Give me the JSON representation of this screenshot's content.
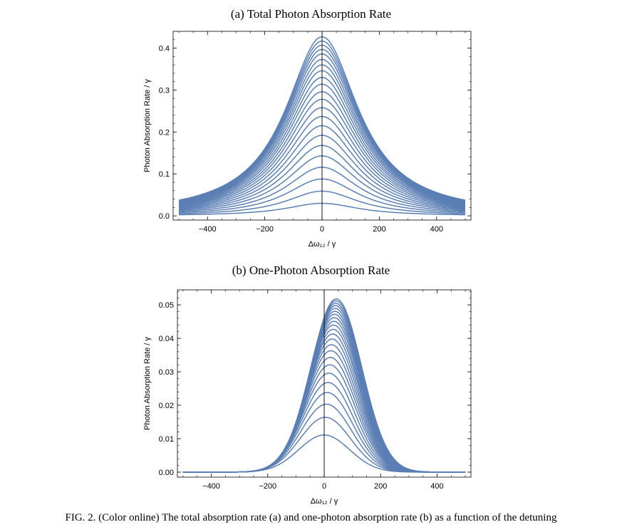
{
  "chart_data": [
    {
      "type": "line",
      "title": "(a) Total Photon Absorption Rate",
      "xlabel": "Δω₁₂ / γ",
      "ylabel": "Photon Absorption Rate / γ",
      "xlim": [
        -520,
        520
      ],
      "ylim": [
        -0.01,
        0.44
      ],
      "x_ticks": [
        -400,
        -200,
        0,
        200,
        400
      ],
      "x_tick_labels": [
        "-400",
        "-200",
        "0",
        "200",
        "400"
      ],
      "y_ticks": [
        0.0,
        0.1,
        0.2,
        0.3,
        0.4
      ],
      "y_tick_labels": [
        "0.0",
        "0.1",
        "0.2",
        "0.3",
        "0.4"
      ],
      "grid": false,
      "line_color": "#5b7fb4",
      "curve_form": "lorentzian",
      "curve_half_width": 155,
      "curve_center": 0,
      "peak_heights": [
        0.03,
        0.059,
        0.088,
        0.116,
        0.143,
        0.168,
        0.192,
        0.215,
        0.237,
        0.258,
        0.278,
        0.296,
        0.314,
        0.33,
        0.346,
        0.36,
        0.373,
        0.386,
        0.397,
        0.407,
        0.417,
        0.427
      ],
      "x_range": [
        -500,
        500
      ]
    },
    {
      "type": "line",
      "title": "(b) One-Photon Absorption Rate",
      "xlabel": "Δω₁₂ / γ",
      "ylabel": "Photon Absorption Rate / γ",
      "xlim": [
        -520,
        520
      ],
      "ylim": [
        -0.0015,
        0.0545
      ],
      "x_ticks": [
        -400,
        -200,
        0,
        200,
        400
      ],
      "x_tick_labels": [
        "-400",
        "-200",
        "0",
        "200",
        "400"
      ],
      "y_ticks": [
        0.0,
        0.01,
        0.02,
        0.03,
        0.04,
        0.05
      ],
      "y_tick_labels": [
        "0.00",
        "0.01",
        "0.02",
        "0.03",
        "0.04",
        "0.05"
      ],
      "grid": false,
      "line_color": "#5b7fb4",
      "curve_form": "gaussian",
      "curve_sigma": 90,
      "peak_heights": [
        0.0111,
        0.0164,
        0.0203,
        0.0238,
        0.0268,
        0.0296,
        0.0321,
        0.0343,
        0.0363,
        0.0381,
        0.0398,
        0.0413,
        0.0427,
        0.044,
        0.0451,
        0.0462,
        0.0472,
        0.0481,
        0.049,
        0.0498,
        0.0505,
        0.0512,
        0.0518
      ],
      "peak_shifts": [
        0,
        4,
        8,
        11,
        14,
        17,
        20,
        22,
        24,
        26,
        28,
        30,
        32,
        33,
        35,
        36,
        37,
        38,
        39,
        40,
        41,
        42,
        43
      ],
      "x_range": [
        -500,
        500
      ]
    }
  ],
  "caption": "FIG. 2. (Color online) The total absorption rate (a) and one-photon absorption rate (b) as a function of the detuning"
}
